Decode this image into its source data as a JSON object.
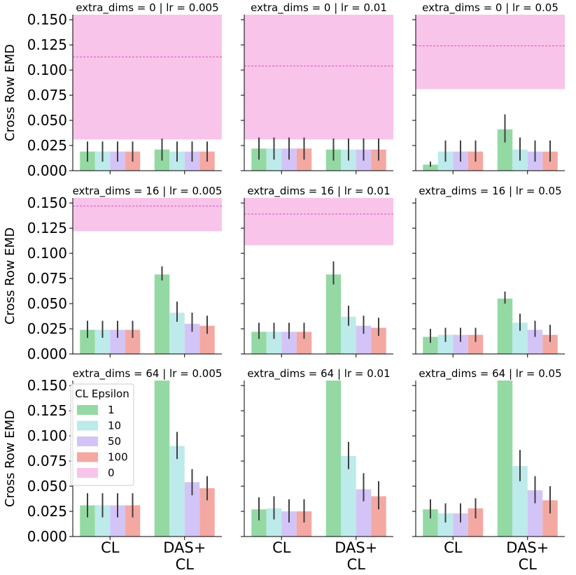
{
  "chart_data": {
    "type": "bar",
    "layout": "3x3 facet grid",
    "ylabel": "Cross Row EMD",
    "ylim": [
      0,
      0.155
    ],
    "yticks": [
      "0.000",
      "0.025",
      "0.050",
      "0.075",
      "0.100",
      "0.125",
      "0.150"
    ],
    "categories": [
      "CL",
      "DAS+\nCL"
    ],
    "legend": {
      "title": "CL Epsilon",
      "position": "upper-left of bottom-left panel",
      "entries": [
        {
          "label": "1",
          "color": "#94d9a4"
        },
        {
          "label": "10",
          "color": "#bdeaea"
        },
        {
          "label": "50",
          "color": "#d3c4f8"
        },
        {
          "label": "100",
          "color": "#f4a8a2"
        },
        {
          "label": "0",
          "color": "#f9c4ea"
        }
      ]
    },
    "band_color": "#f9c4ea",
    "band_line_color": "#e050c0",
    "series_names": [
      "1",
      "10",
      "50",
      "100"
    ],
    "panels": [
      {
        "title": "extra_dims = 0 | lr = 0.005",
        "band": {
          "low": 0.031,
          "high": 0.155,
          "mean": 0.113
        },
        "values": [
          [
            0.019,
            0.019,
            0.019,
            0.019
          ],
          [
            0.021,
            0.019,
            0.019,
            0.019
          ]
        ],
        "errors": [
          [
            [
              0.009,
              0.029
            ],
            [
              0.009,
              0.029
            ],
            [
              0.009,
              0.029
            ],
            [
              0.009,
              0.029
            ]
          ],
          [
            [
              0.01,
              0.032
            ],
            [
              0.009,
              0.029
            ],
            [
              0.009,
              0.029
            ],
            [
              0.009,
              0.029
            ]
          ]
        ]
      },
      {
        "title": "extra_dims = 0 | lr = 0.01",
        "band": {
          "low": 0.031,
          "high": 0.155,
          "mean": 0.104
        },
        "values": [
          [
            0.022,
            0.022,
            0.022,
            0.022
          ],
          [
            0.021,
            0.021,
            0.021,
            0.021
          ]
        ],
        "errors": [
          [
            [
              0.011,
              0.033
            ],
            [
              0.011,
              0.033
            ],
            [
              0.011,
              0.033
            ],
            [
              0.011,
              0.033
            ]
          ],
          [
            [
              0.01,
              0.032
            ],
            [
              0.01,
              0.032
            ],
            [
              0.01,
              0.032
            ],
            [
              0.01,
              0.032
            ]
          ]
        ]
      },
      {
        "title": "extra_dims = 0 | lr = 0.05",
        "band": {
          "low": 0.081,
          "high": 0.155,
          "mean": 0.124
        },
        "values": [
          [
            0.006,
            0.019,
            0.019,
            0.019
          ],
          [
            0.041,
            0.021,
            0.019,
            0.019
          ]
        ],
        "errors": [
          [
            [
              0.004,
              0.009
            ],
            [
              0.009,
              0.03
            ],
            [
              0.009,
              0.03
            ],
            [
              0.009,
              0.03
            ]
          ],
          [
            [
              0.028,
              0.056
            ],
            [
              0.01,
              0.033
            ],
            [
              0.009,
              0.03
            ],
            [
              0.009,
              0.03
            ]
          ]
        ]
      },
      {
        "title": "extra_dims = 16 | lr = 0.005",
        "band": {
          "low": 0.122,
          "high": 0.155,
          "mean": 0.147
        },
        "values": [
          [
            0.024,
            0.024,
            0.024,
            0.024
          ],
          [
            0.079,
            0.041,
            0.03,
            0.028
          ]
        ],
        "errors": [
          [
            [
              0.016,
              0.033
            ],
            [
              0.016,
              0.033
            ],
            [
              0.016,
              0.033
            ],
            [
              0.016,
              0.033
            ]
          ],
          [
            [
              0.073,
              0.087
            ],
            [
              0.032,
              0.052
            ],
            [
              0.022,
              0.041
            ],
            [
              0.02,
              0.038
            ]
          ]
        ]
      },
      {
        "title": "extra_dims = 16 | lr = 0.01",
        "band": {
          "low": 0.108,
          "high": 0.155,
          "mean": 0.139
        },
        "values": [
          [
            0.022,
            0.022,
            0.022,
            0.022
          ],
          [
            0.079,
            0.037,
            0.028,
            0.026
          ]
        ],
        "errors": [
          [
            [
              0.015,
              0.031
            ],
            [
              0.015,
              0.031
            ],
            [
              0.015,
              0.031
            ],
            [
              0.015,
              0.031
            ]
          ],
          [
            [
              0.069,
              0.092
            ],
            [
              0.028,
              0.048
            ],
            [
              0.02,
              0.038
            ],
            [
              0.018,
              0.036
            ]
          ]
        ]
      },
      {
        "title": "extra_dims = 16 | lr = 0.05",
        "band": null,
        "values": [
          [
            0.017,
            0.019,
            0.019,
            0.019
          ],
          [
            0.055,
            0.031,
            0.024,
            0.019
          ]
        ],
        "errors": [
          [
            [
              0.011,
              0.025
            ],
            [
              0.012,
              0.026
            ],
            [
              0.012,
              0.026
            ],
            [
              0.012,
              0.026
            ]
          ],
          [
            [
              0.05,
              0.062
            ],
            [
              0.023,
              0.04
            ],
            [
              0.017,
              0.033
            ],
            [
              0.012,
              0.029
            ]
          ]
        ]
      },
      {
        "title": "extra_dims = 64 | lr = 0.005",
        "band": null,
        "values": [
          [
            0.031,
            0.031,
            0.031,
            0.031
          ],
          [
            0.155,
            0.09,
            0.054,
            0.048
          ]
        ],
        "errors": [
          [
            [
              0.019,
              0.043
            ],
            [
              0.019,
              0.043
            ],
            [
              0.019,
              0.043
            ],
            [
              0.019,
              0.043
            ]
          ],
          [
            [
              0.155,
              0.155
            ],
            [
              0.077,
              0.104
            ],
            [
              0.041,
              0.067
            ],
            [
              0.036,
              0.06
            ]
          ]
        ]
      },
      {
        "title": "extra_dims = 64 | lr = 0.01",
        "band": null,
        "values": [
          [
            0.027,
            0.028,
            0.025,
            0.025
          ],
          [
            0.155,
            0.08,
            0.047,
            0.04
          ]
        ],
        "errors": [
          [
            [
              0.016,
              0.039
            ],
            [
              0.017,
              0.04
            ],
            [
              0.014,
              0.037
            ],
            [
              0.014,
              0.037
            ]
          ],
          [
            [
              0.155,
              0.155
            ],
            [
              0.067,
              0.094
            ],
            [
              0.035,
              0.063
            ],
            [
              0.027,
              0.055
            ]
          ]
        ]
      },
      {
        "title": "extra_dims = 64 | lr = 0.05",
        "band": null,
        "values": [
          [
            0.027,
            0.023,
            0.023,
            0.028
          ],
          [
            0.155,
            0.07,
            0.046,
            0.036
          ]
        ],
        "errors": [
          [
            [
              0.018,
              0.037
            ],
            [
              0.014,
              0.033
            ],
            [
              0.014,
              0.033
            ],
            [
              0.018,
              0.038
            ]
          ],
          [
            [
              0.155,
              0.155
            ],
            [
              0.055,
              0.086
            ],
            [
              0.033,
              0.06
            ],
            [
              0.023,
              0.05
            ]
          ]
        ]
      }
    ]
  }
}
